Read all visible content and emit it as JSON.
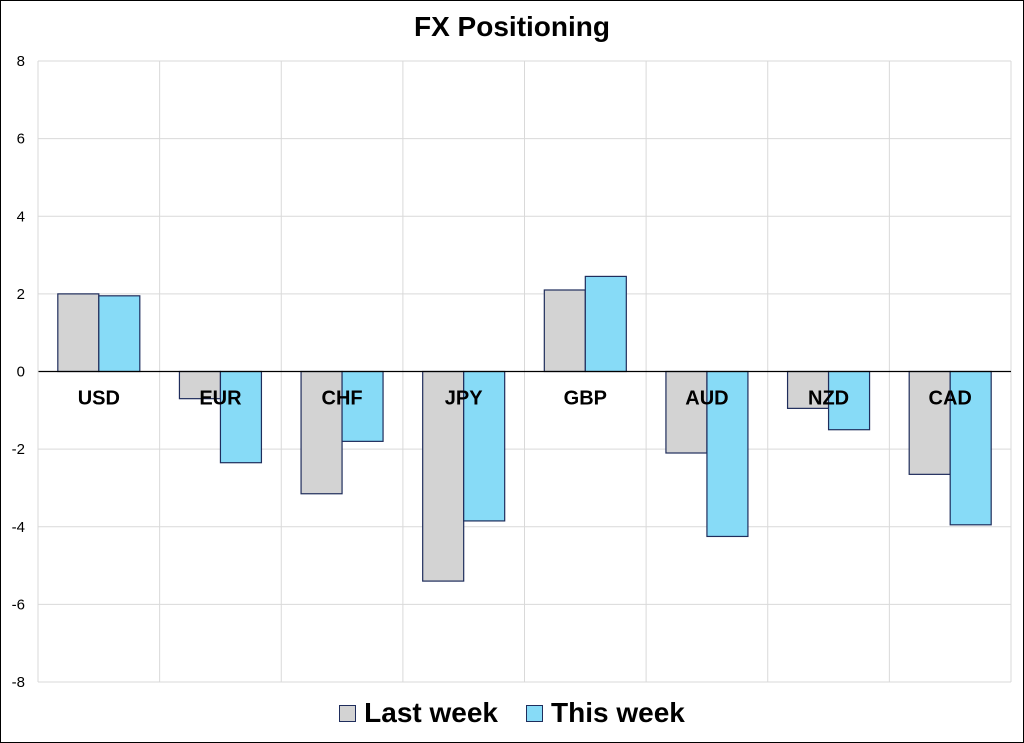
{
  "chart_data": {
    "type": "bar",
    "title": "FX Positioning",
    "xlabel": "",
    "ylabel": "",
    "categories": [
      "USD",
      "EUR",
      "CHF",
      "JPY",
      "GBP",
      "AUD",
      "NZD",
      "CAD"
    ],
    "series": [
      {
        "name": "Last week",
        "color": "#d3d3d3",
        "values": [
          2.0,
          -0.7,
          -3.15,
          -5.4,
          2.1,
          -2.1,
          -0.95,
          -2.65
        ]
      },
      {
        "name": "This week",
        "color": "#87dbf7",
        "values": [
          1.95,
          -2.35,
          -1.8,
          -3.85,
          2.45,
          -4.25,
          -1.5,
          -3.95
        ]
      }
    ],
    "ylim": [
      -8,
      8
    ],
    "yticks": [
      -8,
      -6,
      -4,
      -2,
      0,
      2,
      4,
      6,
      8
    ],
    "grid": true,
    "legend": "bottom",
    "bar_outline_color": "#1f2d5c",
    "grid_color": "#d9d9d9"
  }
}
